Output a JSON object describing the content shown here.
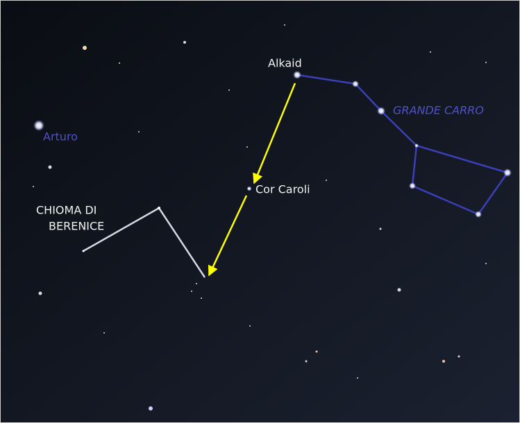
{
  "labels": {
    "alkaid": "Alkaid",
    "grande_carro": "GRANDE CARRO",
    "arturo": "Arturo",
    "cor_caroli": "Cor Caroli",
    "chioma": [
      "CHIOMA DI",
      "BERENICE"
    ]
  }
}
